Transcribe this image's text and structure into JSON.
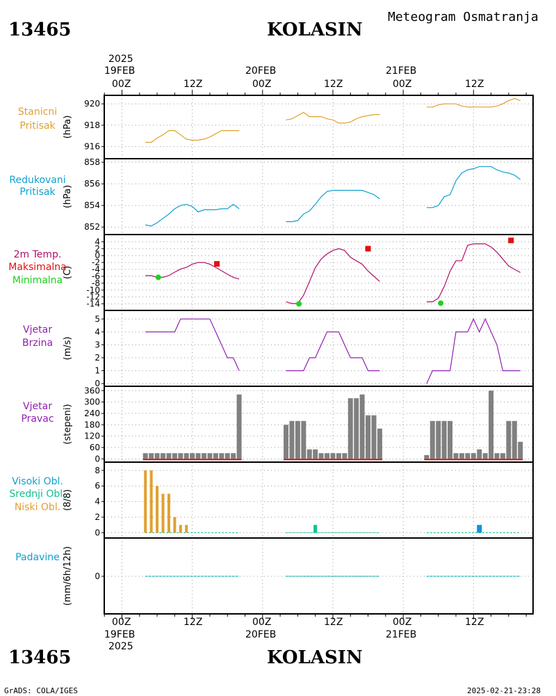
{
  "header": {
    "station_id": "13465",
    "station_name": "KOLASIN",
    "product": "Meteogram Osmatranja",
    "footer_left": "GrADS: COLA/IGES",
    "footer_right": "2025-02-21-23:28"
  },
  "time_axis": {
    "top_year": "2025",
    "bottom_year": "2025",
    "dates": [
      "19FEB",
      "20FEB",
      "21FEB"
    ],
    "ticks": [
      "00Z",
      "12Z",
      "00Z",
      "12Z",
      "00Z",
      "12Z"
    ]
  },
  "colors": {
    "orange": "#e0a030",
    "cyan": "#10a0d0",
    "magenta": "#b0106a",
    "red": "#e01010",
    "green": "#20d020",
    "purple": "#9020b0",
    "gray": "#808080",
    "teal": "#10c090",
    "blue": "#1090e0"
  },
  "chart_data": [
    {
      "id": "station_pressure",
      "type": "line",
      "labels": [
        "Stanicni",
        "Pritisak"
      ],
      "unit": "(hPa)",
      "ylim": [
        915,
        920.6
      ],
      "yticks": [
        916,
        918,
        920
      ],
      "series": [
        {
          "x": [
            4,
            5,
            6,
            7,
            8,
            9,
            10,
            11,
            12,
            13,
            14,
            15,
            16,
            17,
            18,
            19,
            20
          ],
          "y": [
            916.4,
            916.4,
            916.8,
            917.1,
            917.5,
            917.5,
            917.1,
            916.7,
            916.6,
            916.6,
            916.7,
            916.9,
            917.2,
            917.5,
            917.5,
            917.5,
            917.5
          ]
        },
        {
          "x": [
            28,
            29,
            30,
            31,
            32,
            33,
            34,
            35,
            36,
            37,
            38,
            39,
            40,
            41,
            42,
            43,
            44
          ],
          "y": [
            918.5,
            918.6,
            918.9,
            919.2,
            918.8,
            918.8,
            918.8,
            918.6,
            918.5,
            918.2,
            918.2,
            918.3,
            918.6,
            918.8,
            918.9,
            919.0,
            919.0
          ]
        },
        {
          "x": [
            52,
            53,
            54,
            55,
            56,
            57,
            58,
            59,
            60,
            61,
            62,
            63,
            64,
            65,
            66,
            67,
            68
          ],
          "y": [
            919.7,
            919.7,
            919.9,
            920.0,
            920.0,
            920.0,
            919.8,
            919.7,
            919.7,
            919.7,
            919.7,
            919.7,
            919.8,
            920.0,
            920.3,
            920.5,
            920.3
          ]
        }
      ]
    },
    {
      "id": "reduced_pressure",
      "type": "line",
      "labels": [
        "Redukovani",
        "Pritisak"
      ],
      "unit": "(hPa)",
      "ylim": [
        851.5,
        858.2
      ],
      "yticks": [
        852,
        854,
        856,
        858
      ],
      "series": [
        {
          "x": [
            4,
            5,
            6,
            7,
            8,
            9,
            10,
            11,
            12,
            13,
            14,
            15,
            16,
            17,
            18,
            19,
            20
          ],
          "y": [
            852.2,
            852.1,
            852.4,
            852.8,
            853.2,
            853.7,
            854.0,
            854.1,
            853.9,
            853.4,
            853.6,
            853.6,
            853.6,
            853.7,
            853.7,
            854.1,
            853.7
          ]
        },
        {
          "x": [
            28,
            29,
            30,
            31,
            32,
            33,
            34,
            35,
            36,
            37,
            38,
            39,
            40,
            41,
            42,
            43,
            44
          ],
          "y": [
            852.5,
            852.5,
            852.6,
            853.2,
            853.5,
            854.1,
            854.8,
            855.3,
            855.4,
            855.4,
            855.4,
            855.4,
            855.4,
            855.4,
            855.2,
            855.0,
            854.6
          ]
        },
        {
          "x": [
            52,
            53,
            54,
            55,
            56,
            57,
            58,
            59,
            60,
            61,
            62,
            63,
            64,
            65,
            66,
            67,
            68
          ],
          "y": [
            853.8,
            853.8,
            854.0,
            854.8,
            855.0,
            856.3,
            857.0,
            857.3,
            857.4,
            857.6,
            857.6,
            857.6,
            857.3,
            857.1,
            857.0,
            856.8,
            856.4
          ]
        }
      ]
    },
    {
      "id": "temperature_2m",
      "type": "line",
      "labels": [
        "2m Temp.",
        "Maksimalna",
        "Minimalna"
      ],
      "unit": "(C)",
      "ylim": [
        -15.5,
        5.5
      ],
      "yticks": [
        4,
        2,
        0,
        -2,
        -4,
        -6,
        -8,
        -10,
        -12,
        -14
      ],
      "series": [
        {
          "x": [
            4,
            5,
            6,
            7,
            8,
            9,
            10,
            11,
            12,
            13,
            14,
            15,
            16,
            17,
            18,
            19,
            20
          ],
          "y": [
            -5.8,
            -5.8,
            -6.3,
            -6.3,
            -5.8,
            -4.8,
            -3.9,
            -3.4,
            -2.5,
            -2.0,
            -2.0,
            -2.5,
            -3.4,
            -4.4,
            -5.4,
            -6.3,
            -6.8
          ]
        },
        {
          "x": [
            28,
            29,
            30,
            31,
            32,
            33,
            34,
            35,
            36,
            37,
            38,
            39,
            40,
            41,
            42,
            43,
            44
          ],
          "y": [
            -13.4,
            -13.9,
            -13.9,
            -11.5,
            -7.5,
            -3.5,
            -1.0,
            0.5,
            1.5,
            2.0,
            1.5,
            -0.5,
            -1.5,
            -2.5,
            -4.5,
            -6.0,
            -7.5
          ]
        },
        {
          "x": [
            52,
            53,
            54,
            55,
            56,
            57,
            58,
            59,
            60,
            61,
            62,
            63,
            64,
            65,
            66,
            67,
            68
          ],
          "y": [
            -13.4,
            -13.4,
            -12.4,
            -9.0,
            -4.5,
            -1.5,
            -1.5,
            3.0,
            3.4,
            3.4,
            3.4,
            2.5,
            1.0,
            -1.0,
            -3.0,
            -4.0,
            -4.9
          ]
        }
      ],
      "max_markers": [
        {
          "x": 16.2,
          "y": -2.4
        },
        {
          "x": 42.0,
          "y": 2.0
        },
        {
          "x": 66.4,
          "y": 4.4
        }
      ],
      "min_markers": [
        {
          "x": 6.2,
          "y": -6.3
        },
        {
          "x": 30.2,
          "y": -14.0
        },
        {
          "x": 54.4,
          "y": -13.8
        }
      ]
    },
    {
      "id": "wind_speed",
      "type": "line",
      "labels": [
        "Vjetar",
        "Brzina"
      ],
      "unit": "(m/s)",
      "ylim": [
        -0.1,
        5.5
      ],
      "yticks": [
        0,
        1,
        2,
        3,
        4,
        5
      ],
      "series": [
        {
          "x": [
            4,
            5,
            6,
            7,
            8,
            9,
            10,
            11,
            12,
            13,
            14,
            15,
            16,
            17,
            18,
            19,
            20
          ],
          "y": [
            4,
            4,
            4,
            4,
            4,
            4,
            5,
            5,
            5,
            5,
            5,
            5,
            4,
            3,
            2,
            2,
            1
          ]
        },
        {
          "x": [
            28,
            29,
            30,
            31,
            32,
            33,
            34,
            35,
            36,
            37,
            38,
            39,
            40,
            41,
            42,
            43,
            44
          ],
          "y": [
            1,
            1,
            1,
            1,
            2,
            2,
            3,
            4,
            4,
            4,
            3,
            2,
            2,
            2,
            1,
            1,
            1
          ]
        },
        {
          "x": [
            52,
            53,
            54,
            55,
            56,
            57,
            58,
            59,
            60,
            61,
            62,
            63,
            64,
            65,
            66,
            67,
            68
          ],
          "y": [
            0,
            1,
            1,
            1,
            1,
            4,
            4,
            4,
            5,
            4,
            5,
            4,
            3,
            1,
            1,
            1,
            1
          ]
        }
      ]
    },
    {
      "id": "wind_direction",
      "type": "bar",
      "labels": [
        "Vjetar",
        "Pravac"
      ],
      "unit": "(stepeni)",
      "ylim": [
        -10,
        372
      ],
      "yticks": [
        0,
        60,
        120,
        180,
        240,
        300,
        360
      ],
      "bars": [
        {
          "x": [
            4,
            5,
            6,
            7,
            8,
            9,
            10,
            11,
            12,
            13,
            14,
            15,
            16,
            17,
            18,
            19,
            20
          ],
          "y": [
            30,
            30,
            30,
            30,
            30,
            30,
            30,
            30,
            30,
            30,
            30,
            30,
            30,
            30,
            30,
            30,
            340
          ]
        },
        {
          "x": [
            28,
            29,
            30,
            31,
            32,
            33,
            34,
            35,
            36,
            37,
            38,
            39,
            40,
            41,
            42,
            43,
            44
          ],
          "y": [
            180,
            200,
            200,
            200,
            50,
            50,
            30,
            30,
            30,
            30,
            30,
            320,
            320,
            340,
            230,
            230,
            160
          ]
        },
        {
          "x": [
            52,
            53,
            54,
            55,
            56,
            57,
            58,
            59,
            60,
            61,
            62,
            63,
            64,
            65,
            66,
            67,
            68
          ],
          "y": [
            20,
            200,
            200,
            200,
            200,
            30,
            30,
            30,
            30,
            50,
            30,
            360,
            30,
            30,
            200,
            200,
            90
          ]
        }
      ]
    },
    {
      "id": "cloud_cover",
      "type": "bar",
      "labels": [
        "Visoki Obl.",
        "Srednji Obl.",
        "Niski Obl."
      ],
      "unit": "(8/8)",
      "ylim": [
        -0.5,
        8.7
      ],
      "yticks": [
        0,
        2,
        4,
        6,
        8
      ],
      "low": {
        "x": [
          4,
          5,
          6,
          7,
          8,
          9,
          10,
          11
        ],
        "y": [
          8,
          8,
          6,
          5,
          5,
          2,
          1,
          1
        ]
      },
      "middle": {
        "x": [
          33
        ],
        "y": [
          1
        ]
      },
      "high": {
        "x": [
          61
        ],
        "y": [
          1
        ]
      },
      "zero_segments": [
        [
          4,
          20
        ],
        [
          28,
          44
        ],
        [
          52,
          68
        ]
      ]
    },
    {
      "id": "precipitation",
      "type": "line",
      "labels": [
        "Padavine"
      ],
      "unit": "(mm/6h/12h)",
      "ylim": [
        -1.5,
        1.5
      ],
      "yticks": [
        0
      ],
      "zero_segments": [
        [
          4,
          20
        ],
        [
          28,
          44
        ],
        [
          52,
          68
        ]
      ]
    }
  ]
}
